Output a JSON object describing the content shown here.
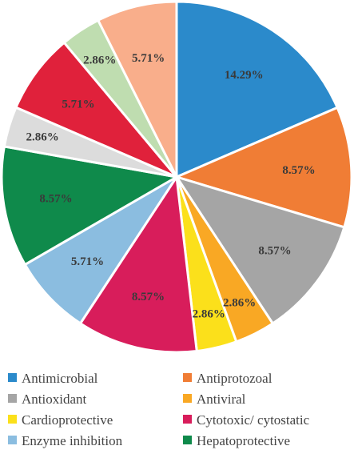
{
  "chart_data": {
    "type": "pie",
    "title": "",
    "start_angle_deg": 0,
    "direction": "clockwise",
    "series": [
      {
        "label": "Antimicrobial",
        "value": 14.29,
        "value_label": "14.29%",
        "color": "#2B8ACB"
      },
      {
        "label": "Antiprotozoal",
        "value": 8.57,
        "value_label": "8.57%",
        "color": "#F07D35"
      },
      {
        "label": "Antioxidant",
        "value": 8.57,
        "value_label": "8.57%",
        "color": "#A5A5A5"
      },
      {
        "label": "Antiviral",
        "value": 2.86,
        "value_label": "2.86%",
        "color": "#F9A824"
      },
      {
        "label": "Cardioprotective",
        "value": 2.86,
        "value_label": "2.86%",
        "color": "#FBE01B"
      },
      {
        "label": "Cytotoxic/ cytostatic",
        "value": 8.57,
        "value_label": "8.57%",
        "color": "#D81D5B"
      },
      {
        "label": "Enzyme inhibition",
        "value": 5.71,
        "value_label": "5.71%",
        "color": "#8BBDE0"
      },
      {
        "label": "Hepatoprotective",
        "value": 8.57,
        "value_label": "8.57%",
        "color": "#0F8A4B"
      },
      {
        "label": "",
        "value": 2.86,
        "value_label": "2.86%",
        "color": "#DCDCDC"
      },
      {
        "label": "",
        "value": 5.71,
        "value_label": "5.71%",
        "color": "#E0213B"
      },
      {
        "label": "",
        "value": 2.86,
        "value_label": "2.86%",
        "color": "#BFDDB0"
      },
      {
        "label": "",
        "value": 5.71,
        "value_label": "5.71%",
        "color": "#F9AE8B"
      }
    ],
    "legend": {
      "placement": "bottom",
      "columns": 2
    }
  }
}
